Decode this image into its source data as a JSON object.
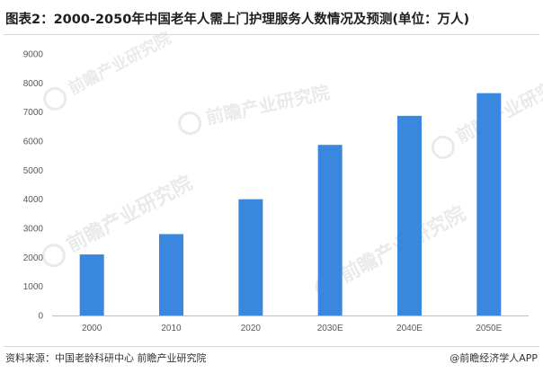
{
  "title": "图表2：2000-2050年中国老年人需上门护理服务人数情况及预测(单位：万人)",
  "footer": {
    "source": "资料来源：中国老龄科研中心 前瞻产业研究院",
    "brand": "@前瞻经济学人APP"
  },
  "watermark": {
    "text": "前瞻产业研究院"
  },
  "colors": {
    "bar": "#3a87e0",
    "axis": "#bfbfbf",
    "tick_text": "#595959"
  },
  "chart_data": {
    "type": "bar",
    "title": "",
    "xlabel": "",
    "ylabel": "",
    "categories": [
      "2000",
      "2010",
      "2020",
      "2030E",
      "2040E",
      "2050E"
    ],
    "values": [
      2100,
      2800,
      4000,
      5870,
      6870,
      7650
    ],
    "ylim": [
      0,
      9000
    ],
    "yticks": [
      0,
      1000,
      2000,
      3000,
      4000,
      5000,
      6000,
      7000,
      8000,
      9000
    ],
    "grid": false,
    "legend": "none"
  }
}
